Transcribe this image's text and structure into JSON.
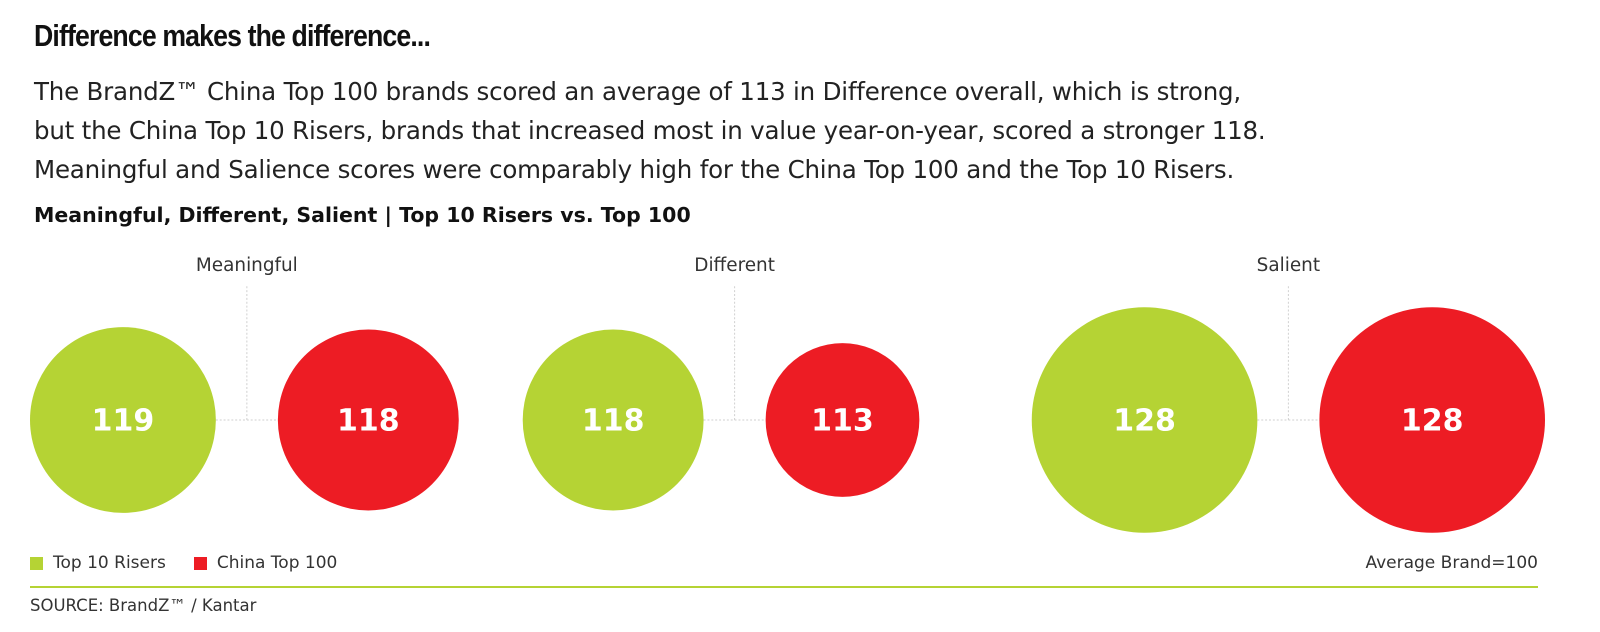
{
  "headline": "Difference makes the difference...",
  "intro": {
    "line1": "The BrandZ™ China Top 100 brands scored an average of 113 in Difference overall, which is strong,",
    "line2": "but the China Top 10 Risers, brands that increased most in value year-on-year, scored a stronger 118.",
    "line3": "Meaningful and Salience scores were comparably high for the China Top 100 and the Top 10 Risers."
  },
  "colors": {
    "risers": "#b5d334",
    "top100": "#ed1c24"
  },
  "chart_data": {
    "type": "bubble",
    "title": "Meaningful, Different, Salient | Top 10 Risers vs. Top 100",
    "categories": [
      "Meaningful",
      "Different",
      "Salient"
    ],
    "series": [
      {
        "name": "Top 10 Risers",
        "values": [
          119,
          118,
          128
        ]
      },
      {
        "name": "China Top 100",
        "values": [
          118,
          113,
          128
        ]
      }
    ],
    "baseline_label": "Average Brand=100",
    "baseline": 100
  },
  "legend": {
    "items": [
      "Top 10 Risers",
      "China Top 100"
    ]
  },
  "source": "SOURCE: BrandZ™ / Kantar"
}
